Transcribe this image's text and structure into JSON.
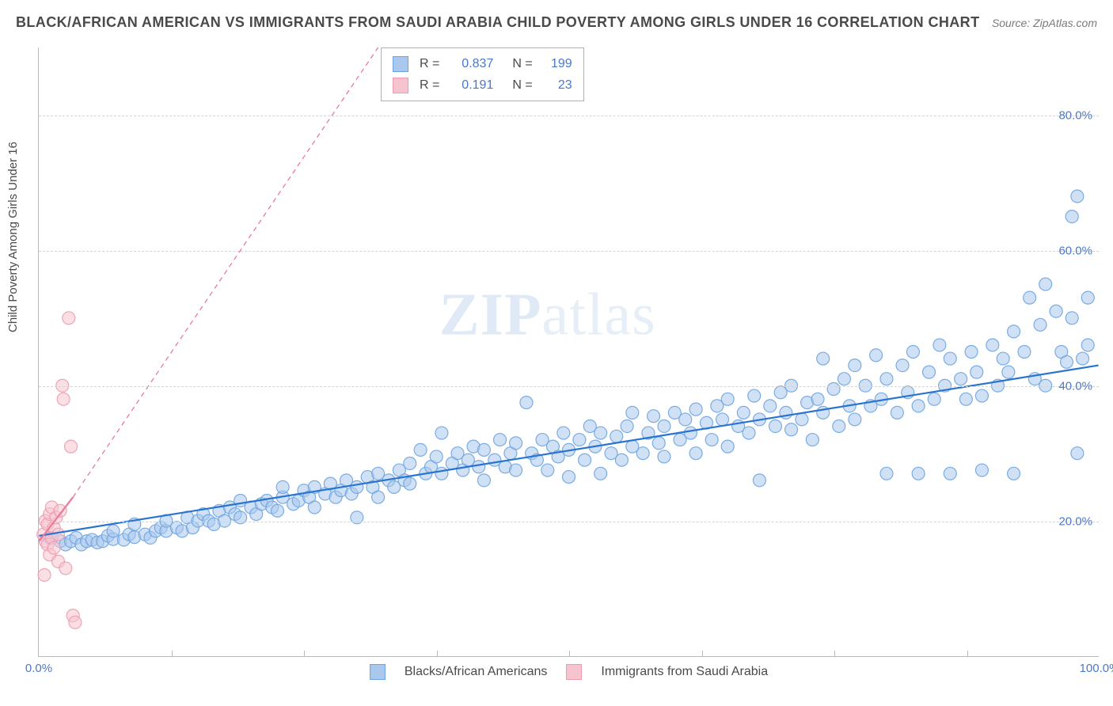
{
  "title": "BLACK/AFRICAN AMERICAN VS IMMIGRANTS FROM SAUDI ARABIA CHILD POVERTY AMONG GIRLS UNDER 16 CORRELATION CHART",
  "source": "Source: ZipAtlas.com",
  "ylabel": "Child Poverty Among Girls Under 16",
  "watermark_a": "ZIP",
  "watermark_b": "atlas",
  "chart": {
    "type": "scatter",
    "background_color": "#ffffff",
    "grid_color": "#d4d4d4",
    "axis_color": "#b8b8b8",
    "tick_label_color": "#4a78c8",
    "xlim": [
      0,
      100
    ],
    "ylim": [
      0,
      90
    ],
    "xticks": [
      0,
      100
    ],
    "xtick_labels": [
      "0.0%",
      "100.0%"
    ],
    "yticks": [
      20,
      40,
      60,
      80
    ],
    "ytick_labels": [
      "20.0%",
      "40.0%",
      "60.0%",
      "80.0%"
    ],
    "vgrid_positions": [
      12.5,
      25,
      37.5,
      50,
      62.5,
      75,
      87.5
    ],
    "marker_radius": 8,
    "marker_opacity": 0.55,
    "marker_stroke_opacity": 0.9,
    "line_width": 2.2
  },
  "series": [
    {
      "name": "Blacks/African Americans",
      "legend_label": "Blacks/African Americans",
      "R": "0.837",
      "N": "199",
      "fill": "#a9c8ed",
      "stroke": "#6ea4e0",
      "line_color": "#2a74d0",
      "trend": {
        "x1": 0,
        "y1": 17.8,
        "x2": 100,
        "y2": 43,
        "dash": null
      },
      "trend_extend": null,
      "points": [
        [
          1,
          17.5
        ],
        [
          2,
          17
        ],
        [
          2.5,
          16.5
        ],
        [
          3,
          17
        ],
        [
          3.5,
          17.5
        ],
        [
          4,
          16.5
        ],
        [
          4.5,
          17
        ],
        [
          5,
          17.2
        ],
        [
          5.5,
          16.8
        ],
        [
          6,
          17
        ],
        [
          6.5,
          17.8
        ],
        [
          7,
          17.3
        ],
        [
          7,
          18.5
        ],
        [
          8,
          17.2
        ],
        [
          8.5,
          18
        ],
        [
          9,
          17.6
        ],
        [
          9,
          19.5
        ],
        [
          10,
          18
        ],
        [
          10.5,
          17.5
        ],
        [
          11,
          18.5
        ],
        [
          11.5,
          19
        ],
        [
          12,
          18.5
        ],
        [
          12,
          20
        ],
        [
          13,
          19
        ],
        [
          13.5,
          18.5
        ],
        [
          14,
          20.5
        ],
        [
          14.5,
          19
        ],
        [
          15,
          20
        ],
        [
          15.5,
          21
        ],
        [
          16,
          20
        ],
        [
          16.5,
          19.5
        ],
        [
          17,
          21.5
        ],
        [
          17.5,
          20
        ],
        [
          18,
          22
        ],
        [
          18.5,
          21
        ],
        [
          19,
          20.5
        ],
        [
          19,
          23
        ],
        [
          20,
          22
        ],
        [
          20.5,
          21
        ],
        [
          21,
          22.5
        ],
        [
          21.5,
          23
        ],
        [
          22,
          22
        ],
        [
          22.5,
          21.5
        ],
        [
          23,
          23.5
        ],
        [
          23,
          25
        ],
        [
          24,
          22.5
        ],
        [
          24.5,
          23
        ],
        [
          25,
          24.5
        ],
        [
          25.5,
          23.5
        ],
        [
          26,
          25
        ],
        [
          26,
          22
        ],
        [
          27,
          24
        ],
        [
          27.5,
          25.5
        ],
        [
          28,
          23.5
        ],
        [
          28.5,
          24.5
        ],
        [
          29,
          26
        ],
        [
          29.5,
          24
        ],
        [
          30,
          25
        ],
        [
          30,
          20.5
        ],
        [
          31,
          26.5
        ],
        [
          31.5,
          25
        ],
        [
          32,
          27
        ],
        [
          32,
          23.5
        ],
        [
          33,
          26
        ],
        [
          33.5,
          25
        ],
        [
          34,
          27.5
        ],
        [
          34.5,
          26
        ],
        [
          35,
          28.5
        ],
        [
          35,
          25.5
        ],
        [
          36,
          30.5
        ],
        [
          36.5,
          27
        ],
        [
          37,
          28
        ],
        [
          37.5,
          29.5
        ],
        [
          38,
          27
        ],
        [
          38,
          33
        ],
        [
          39,
          28.5
        ],
        [
          39.5,
          30
        ],
        [
          40,
          27.5
        ],
        [
          40.5,
          29
        ],
        [
          41,
          31
        ],
        [
          41.5,
          28
        ],
        [
          42,
          26
        ],
        [
          42,
          30.5
        ],
        [
          43,
          29
        ],
        [
          43.5,
          32
        ],
        [
          44,
          28
        ],
        [
          44.5,
          30
        ],
        [
          45,
          31.5
        ],
        [
          45,
          27.5
        ],
        [
          46,
          37.5
        ],
        [
          46.5,
          30
        ],
        [
          47,
          29
        ],
        [
          47.5,
          32
        ],
        [
          48,
          27.5
        ],
        [
          48.5,
          31
        ],
        [
          49,
          29.5
        ],
        [
          49.5,
          33
        ],
        [
          50,
          26.5
        ],
        [
          50,
          30.5
        ],
        [
          51,
          32
        ],
        [
          51.5,
          29
        ],
        [
          52,
          34
        ],
        [
          52.5,
          31
        ],
        [
          53,
          27
        ],
        [
          53,
          33
        ],
        [
          54,
          30
        ],
        [
          54.5,
          32.5
        ],
        [
          55,
          29
        ],
        [
          55.5,
          34
        ],
        [
          56,
          31
        ],
        [
          56,
          36
        ],
        [
          57,
          30
        ],
        [
          57.5,
          33
        ],
        [
          58,
          35.5
        ],
        [
          58.5,
          31.5
        ],
        [
          59,
          34
        ],
        [
          59,
          29.5
        ],
        [
          60,
          36
        ],
        [
          60.5,
          32
        ],
        [
          61,
          35
        ],
        [
          61.5,
          33
        ],
        [
          62,
          36.5
        ],
        [
          62,
          30
        ],
        [
          63,
          34.5
        ],
        [
          63.5,
          32
        ],
        [
          64,
          37
        ],
        [
          64.5,
          35
        ],
        [
          65,
          31
        ],
        [
          65,
          38
        ],
        [
          66,
          34
        ],
        [
          66.5,
          36
        ],
        [
          67,
          33
        ],
        [
          67.5,
          38.5
        ],
        [
          68,
          35
        ],
        [
          68,
          26
        ],
        [
          69,
          37
        ],
        [
          69.5,
          34
        ],
        [
          70,
          39
        ],
        [
          70.5,
          36
        ],
        [
          71,
          33.5
        ],
        [
          71,
          40
        ],
        [
          72,
          35
        ],
        [
          72.5,
          37.5
        ],
        [
          73,
          32
        ],
        [
          73.5,
          38
        ],
        [
          74,
          44
        ],
        [
          74,
          36
        ],
        [
          75,
          39.5
        ],
        [
          75.5,
          34
        ],
        [
          76,
          41
        ],
        [
          76.5,
          37
        ],
        [
          77,
          43
        ],
        [
          77,
          35
        ],
        [
          78,
          40
        ],
        [
          78.5,
          37
        ],
        [
          79,
          44.5
        ],
        [
          79.5,
          38
        ],
        [
          80,
          27
        ],
        [
          80,
          41
        ],
        [
          81,
          36
        ],
        [
          81.5,
          43
        ],
        [
          82,
          39
        ],
        [
          82.5,
          45
        ],
        [
          83,
          37
        ],
        [
          83,
          27
        ],
        [
          84,
          42
        ],
        [
          84.5,
          38
        ],
        [
          85,
          46
        ],
        [
          85.5,
          40
        ],
        [
          86,
          44
        ],
        [
          86,
          27
        ],
        [
          87,
          41
        ],
        [
          87.5,
          38
        ],
        [
          88,
          45
        ],
        [
          88.5,
          42
        ],
        [
          89,
          27.5
        ],
        [
          89,
          38.5
        ],
        [
          90,
          46
        ],
        [
          90.5,
          40
        ],
        [
          91,
          44
        ],
        [
          91.5,
          42
        ],
        [
          92,
          48
        ],
        [
          92,
          27
        ],
        [
          93,
          45
        ],
        [
          93.5,
          53
        ],
        [
          94,
          41
        ],
        [
          94.5,
          49
        ],
        [
          95,
          55
        ],
        [
          95,
          40
        ],
        [
          96,
          51
        ],
        [
          96.5,
          45
        ],
        [
          97,
          43.5
        ],
        [
          97.5,
          50
        ],
        [
          97.5,
          65
        ],
        [
          98,
          68
        ],
        [
          98,
          30
        ],
        [
          98.5,
          44
        ],
        [
          99,
          46
        ],
        [
          99,
          53
        ]
      ]
    },
    {
      "name": "Immigrants from Saudi Arabia",
      "legend_label": "Immigrants from Saudi Arabia",
      "R": "0.191",
      "N": "23",
      "fill": "#f6c4cf",
      "stroke": "#ec9bb0",
      "line_color": "#e97a99",
      "trend": {
        "x1": 0,
        "y1": 17,
        "x2": 3.2,
        "y2": 23.5,
        "dash": null
      },
      "trend_extend": {
        "x1": 3.2,
        "y1": 23.5,
        "x2": 32,
        "y2": 90,
        "dash": "6,5"
      },
      "points": [
        [
          0.4,
          18
        ],
        [
          0.6,
          17
        ],
        [
          0.6,
          20
        ],
        [
          0.8,
          16.5
        ],
        [
          0.8,
          19.5
        ],
        [
          1,
          15
        ],
        [
          1,
          21
        ],
        [
          1.2,
          17.5
        ],
        [
          1.2,
          22
        ],
        [
          1.4,
          16
        ],
        [
          1.4,
          19
        ],
        [
          1.6,
          20.5
        ],
        [
          1.8,
          18
        ],
        [
          1.8,
          14
        ],
        [
          2,
          21.5
        ],
        [
          2.2,
          40
        ],
        [
          2.3,
          38
        ],
        [
          2.5,
          13
        ],
        [
          2.8,
          50
        ],
        [
          3,
          31
        ],
        [
          0.5,
          12
        ],
        [
          3.2,
          6
        ],
        [
          3.4,
          5
        ]
      ]
    }
  ]
}
